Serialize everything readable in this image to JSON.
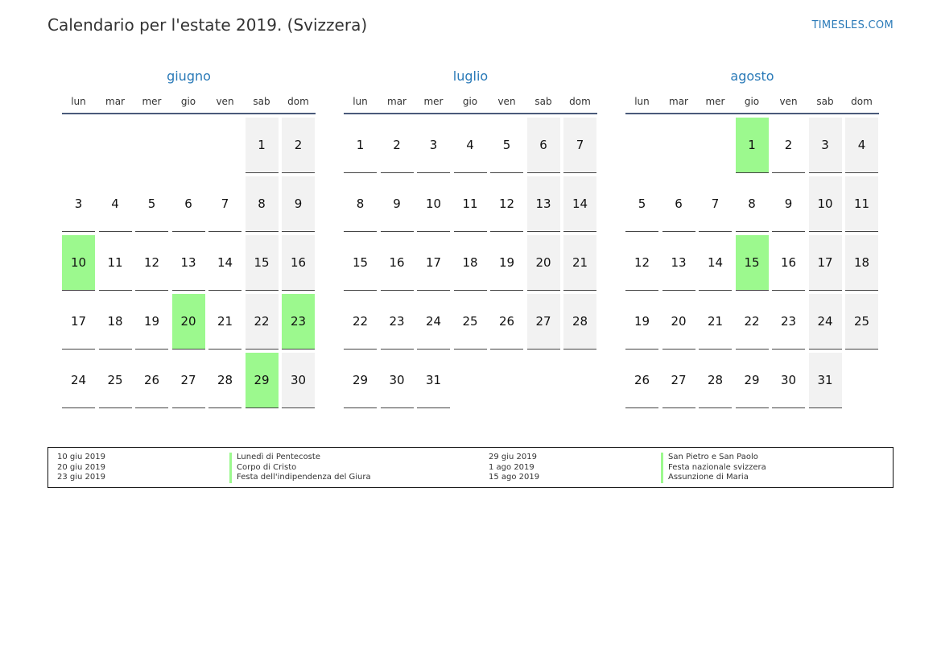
{
  "header": {
    "title": "Calendario per l'estate 2019. (Svizzera)",
    "site": "TIMESLES.COM"
  },
  "weekdays": [
    "lun",
    "mar",
    "mer",
    "gio",
    "ven",
    "sab",
    "dom"
  ],
  "months": [
    {
      "name": "giugno",
      "start_offset": 5,
      "days": 30,
      "holidays": [
        10,
        20,
        23,
        29
      ]
    },
    {
      "name": "luglio",
      "start_offset": 0,
      "days": 31,
      "holidays": []
    },
    {
      "name": "agosto",
      "start_offset": 3,
      "days": 31,
      "holidays": [
        1,
        15
      ]
    }
  ],
  "legend": {
    "dates_left": [
      "10 giu 2019",
      "20 giu 2019",
      "23 giu 2019"
    ],
    "names_left": [
      "Lunedì di Pentecoste",
      "Corpo di Cristo",
      "Festa dell'indipendenza del Giura"
    ],
    "dates_right": [
      "29 giu 2019",
      "1 ago 2019",
      "15 ago 2019"
    ],
    "names_right": [
      "San Pietro e San Paolo",
      "Festa nazionale svizzera",
      "Assunzione di Maria"
    ]
  },
  "colors": {
    "holiday": "#9cf98e",
    "weekend": "#f2f2f2",
    "accent": "#2a7ab8"
  }
}
